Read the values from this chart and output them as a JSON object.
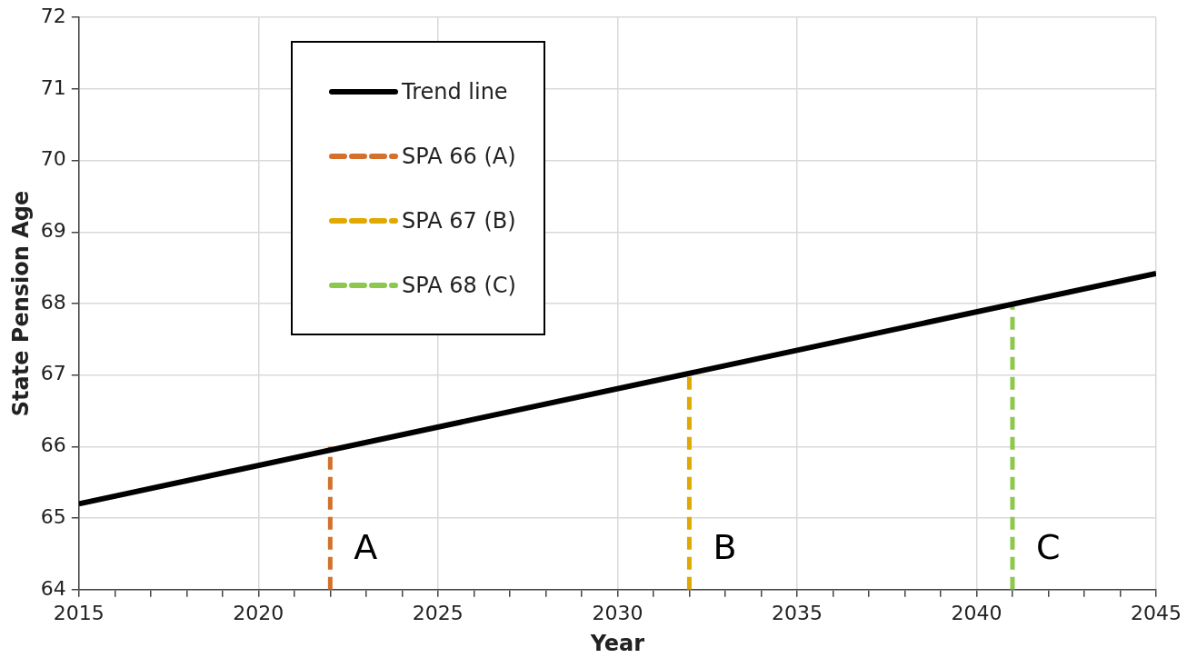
{
  "chart_data": {
    "type": "line",
    "xlabel": "Year",
    "ylabel": "State Pension Age",
    "xlim": [
      2015,
      2045
    ],
    "xticks": [
      2015,
      {
        "value": 2016,
        "label": null
      },
      {
        "value": 2017,
        "label": null
      },
      {
        "value": 2018,
        "label": null
      },
      {
        "value": 2019,
        "label": null
      },
      2020,
      {
        "value": 2021,
        "label": null
      },
      {
        "value": 2022,
        "label": null
      },
      {
        "value": 2023,
        "label": null
      },
      {
        "value": 2024,
        "label": null
      },
      2025,
      {
        "value": 2026,
        "label": null
      },
      {
        "value": 2027,
        "label": null
      },
      {
        "value": 2028,
        "label": null
      },
      {
        "value": 2029,
        "label": null
      },
      2030,
      {
        "value": 2031,
        "label": null
      },
      {
        "value": 2032,
        "label": null
      },
      {
        "value": 2033,
        "label": null
      },
      {
        "value": 2034,
        "label": null
      },
      2035,
      {
        "value": 2036,
        "label": null
      },
      {
        "value": 2037,
        "label": null
      },
      {
        "value": 2038,
        "label": null
      },
      {
        "value": 2039,
        "label": null
      },
      2040,
      {
        "value": 2041,
        "label": null
      },
      {
        "value": 2042,
        "label": null
      },
      {
        "value": 2043,
        "label": null
      },
      {
        "value": 2044,
        "label": null
      },
      2045
    ],
    "ylim": [
      64,
      72
    ],
    "yticks": [
      64,
      65,
      66,
      67,
      68,
      69,
      70,
      71,
      72
    ],
    "grid": true,
    "legend": "top left",
    "series": [
      {
        "name": "Trend line",
        "type": "line",
        "color": "#000000",
        "line_style": "solid",
        "x": [
          2015,
          2045
        ],
        "values": [
          65.2,
          68.42
        ]
      },
      {
        "name": "SPA 66 (A)",
        "type": "line",
        "color": "#d4702c",
        "line_style": "dashed",
        "x": [
          2022,
          2022
        ],
        "values": [
          64,
          66
        ]
      },
      {
        "name": "SPA 67 (B)",
        "type": "line",
        "color": "#e0a800",
        "line_style": "dashed",
        "x": [
          2032,
          2032
        ],
        "values": [
          64,
          67.03
        ]
      },
      {
        "name": "SPA 68 (C)",
        "type": "line",
        "color": "#8cc84b",
        "line_style": "dashed",
        "x": [
          2041,
          2041
        ],
        "values": [
          64,
          68
        ]
      }
    ],
    "annotations": [
      {
        "text": "A",
        "x": 2022,
        "y": 64.55
      },
      {
        "text": "B",
        "x": 2032,
        "y": 64.55
      },
      {
        "text": "C",
        "x": 2041,
        "y": 64.55
      }
    ]
  }
}
